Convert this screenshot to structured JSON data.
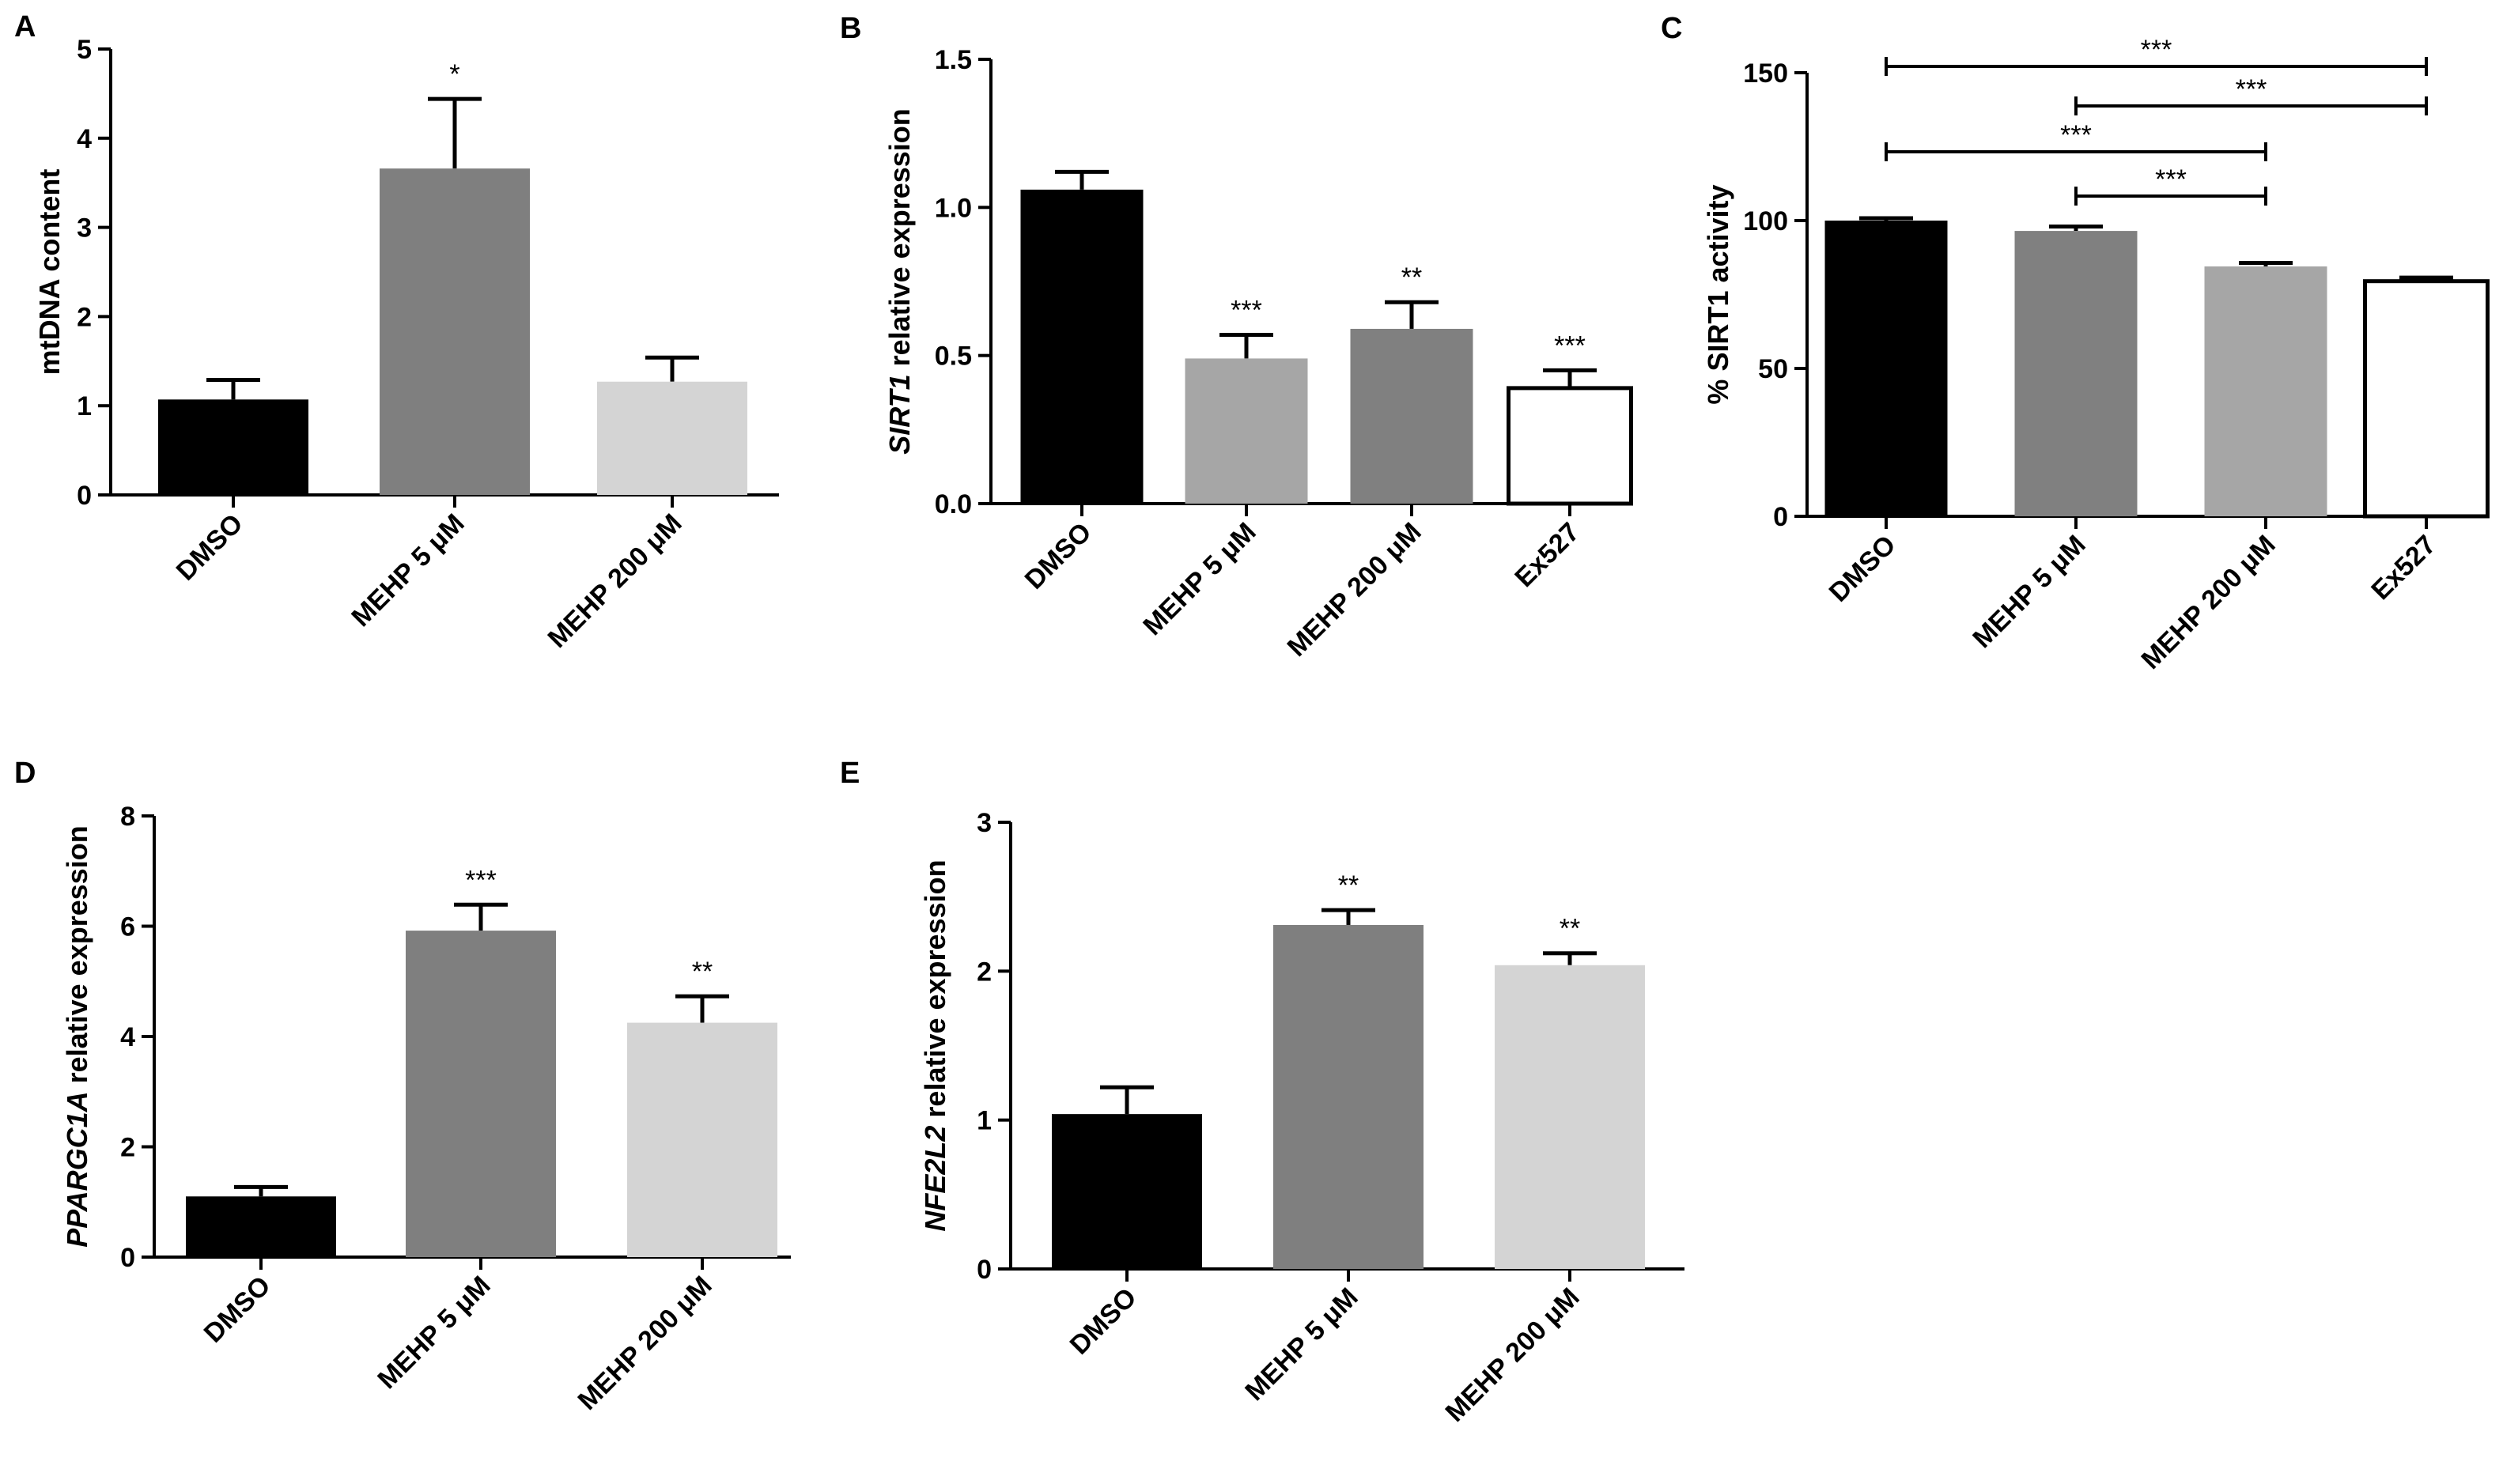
{
  "chart_data": [
    {
      "panel": "A",
      "type": "bar",
      "title": "",
      "xlabel": "",
      "ylabel": "mtDNA content",
      "ylabel_italic_prefix": "",
      "ylim": [
        0,
        5
      ],
      "yticks": [
        0,
        1,
        2,
        3,
        4,
        5
      ],
      "categories": [
        "DMSO",
        "MEHP 5 μM",
        "MEHP 200 μM"
      ],
      "values": [
        1.07,
        3.66,
        1.27
      ],
      "errors": [
        0.22,
        0.78,
        0.27
      ],
      "colors": [
        "#000000",
        "#7f7f7f",
        "#d4d4d4"
      ],
      "significance": [
        "",
        "*",
        ""
      ]
    },
    {
      "panel": "B",
      "type": "bar",
      "title": "",
      "xlabel": "",
      "ylabel": " relative expression",
      "ylabel_italic_prefix": "SIRT1",
      "ylim": [
        0,
        1.5
      ],
      "yticks": [
        0.0,
        0.5,
        1.0,
        1.5
      ],
      "ytick_labels": [
        "0.0",
        "0.5",
        "1.0",
        "1.5"
      ],
      "categories": [
        "DMSO",
        "MEHP 5 μM",
        "MEHP 200 μM",
        "Ex527"
      ],
      "values": [
        1.06,
        0.49,
        0.59,
        0.39
      ],
      "errors": [
        0.06,
        0.08,
        0.09,
        0.06
      ],
      "colors": [
        "#000000",
        "#a6a6a6",
        "#808080",
        "#ffffff"
      ],
      "significance": [
        "",
        "***",
        "**",
        "***"
      ]
    },
    {
      "panel": "C",
      "type": "bar",
      "title": "",
      "xlabel": "",
      "ylabel": "% SIRT1 activity",
      "ylabel_italic_prefix": "",
      "ylim": [
        0,
        150
      ],
      "yticks": [
        0,
        50,
        100,
        150
      ],
      "categories": [
        "DMSO",
        "MEHP 5 μM",
        "MEHP 200 μM",
        "Ex527"
      ],
      "values": [
        100,
        96.5,
        84.5,
        79.5
      ],
      "errors": [
        0.8,
        1.5,
        1.2,
        1.2
      ],
      "colors": [
        "#000000",
        "#808080",
        "#a6a6a6",
        "#ffffff"
      ],
      "significance": [
        "",
        "",
        "",
        ""
      ],
      "comparisons": [
        {
          "from": 0,
          "to": 3,
          "label": "***"
        },
        {
          "from": 1,
          "to": 3,
          "label": "***"
        },
        {
          "from": 0,
          "to": 2,
          "label": "***"
        },
        {
          "from": 1,
          "to": 2,
          "label": "***"
        }
      ]
    },
    {
      "panel": "D",
      "type": "bar",
      "title": "",
      "xlabel": "",
      "ylabel": " relative expression",
      "ylabel_italic_prefix": "PPARGC1A",
      "ylim": [
        0,
        8
      ],
      "yticks": [
        0,
        2,
        4,
        6,
        8
      ],
      "categories": [
        "DMSO",
        "MEHP 5 μM",
        "MEHP 200 μM"
      ],
      "values": [
        1.1,
        5.92,
        4.25
      ],
      "errors": [
        0.17,
        0.47,
        0.48
      ],
      "colors": [
        "#000000",
        "#7f7f7f",
        "#d4d4d4"
      ],
      "significance": [
        "",
        "***",
        "**"
      ]
    },
    {
      "panel": "E",
      "type": "bar",
      "title": "",
      "xlabel": "",
      "ylabel": "  relative expression",
      "ylabel_italic_prefix": "NFE2L2",
      "ylim": [
        0,
        3
      ],
      "yticks": [
        0,
        1,
        2,
        3
      ],
      "categories": [
        "DMSO",
        "MEHP 5 μM",
        "MEHP 200 μM"
      ],
      "values": [
        1.04,
        2.31,
        2.04
      ],
      "errors": [
        0.18,
        0.1,
        0.08
      ],
      "colors": [
        "#000000",
        "#7f7f7f",
        "#d4d4d4"
      ],
      "significance": [
        "",
        "**",
        "**"
      ]
    }
  ]
}
